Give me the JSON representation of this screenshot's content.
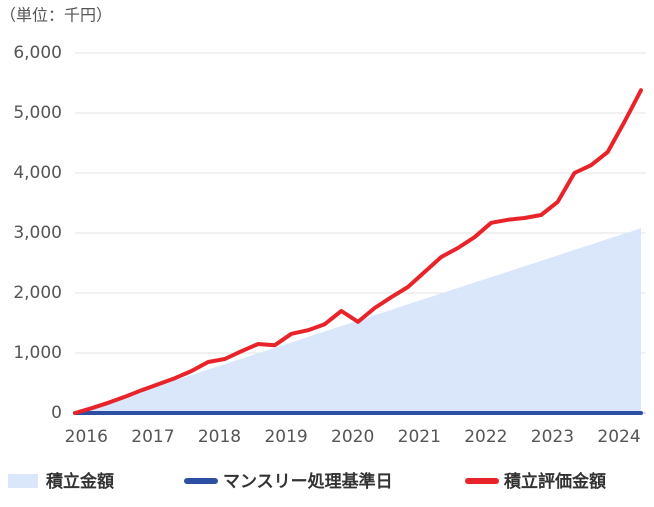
{
  "chart_data": {
    "type": "line",
    "unit_label": "（単位：千円）",
    "x": [
      2015.83,
      2016.08,
      2016.33,
      2016.58,
      2016.83,
      2017.08,
      2017.33,
      2017.58,
      2017.83,
      2018.08,
      2018.33,
      2018.58,
      2018.83,
      2019.08,
      2019.33,
      2019.58,
      2019.83,
      2020.08,
      2020.33,
      2020.58,
      2020.83,
      2021.08,
      2021.33,
      2021.58,
      2021.83,
      2022.08,
      2022.33,
      2022.58,
      2022.83,
      2023.08,
      2023.33,
      2023.58,
      2023.83,
      2024.08,
      2024.33
    ],
    "series": [
      {
        "name": "積立金額",
        "kind": "area",
        "color": "#dae7fb",
        "values": [
          0,
          91,
          181,
          272,
          362,
          453,
          544,
          634,
          725,
          815,
          906,
          996,
          1087,
          1178,
          1268,
          1359,
          1449,
          1540,
          1631,
          1721,
          1812,
          1902,
          1993,
          2084,
          2174,
          2265,
          2355,
          2446,
          2536,
          2627,
          2718,
          2808,
          2899,
          2989,
          3080
        ]
      },
      {
        "name": "マンスリー処理基準日",
        "kind": "line",
        "color": "#2c4fa3",
        "values": [
          0,
          0,
          0,
          0,
          0,
          0,
          0,
          0,
          0,
          0,
          0,
          0,
          0,
          0,
          0,
          0,
          0,
          0,
          0,
          0,
          0,
          0,
          0,
          0,
          0,
          0,
          0,
          0,
          0,
          0,
          0,
          0,
          0,
          0,
          0
        ]
      },
      {
        "name": "積立評価金額",
        "kind": "line",
        "color": "#e8242a",
        "values": [
          0,
          80,
          170,
          270,
          380,
          480,
          580,
          700,
          850,
          900,
          1030,
          1150,
          1130,
          1320,
          1380,
          1480,
          1700,
          1520,
          1750,
          1930,
          2100,
          2350,
          2600,
          2750,
          2930,
          3170,
          3220,
          3250,
          3300,
          3520,
          4000,
          4130,
          4350,
          4850,
          5380
        ]
      }
    ],
    "xlim": [
      2015.83,
      2024.33
    ],
    "xticks": [
      2016,
      2017,
      2018,
      2019,
      2020,
      2021,
      2022,
      2023,
      2024
    ],
    "ylim": [
      0,
      6000
    ],
    "yticks": [
      0,
      {
        "value": 1000,
        "label": "1,000"
      },
      {
        "value": 2000,
        "label": "2,000"
      },
      {
        "value": 3000,
        "label": "3,000"
      },
      {
        "value": 4000,
        "label": "4,000"
      },
      {
        "value": 5000,
        "label": "5,000"
      },
      {
        "value": 6000,
        "label": "6,000"
      }
    ],
    "grid": true
  }
}
